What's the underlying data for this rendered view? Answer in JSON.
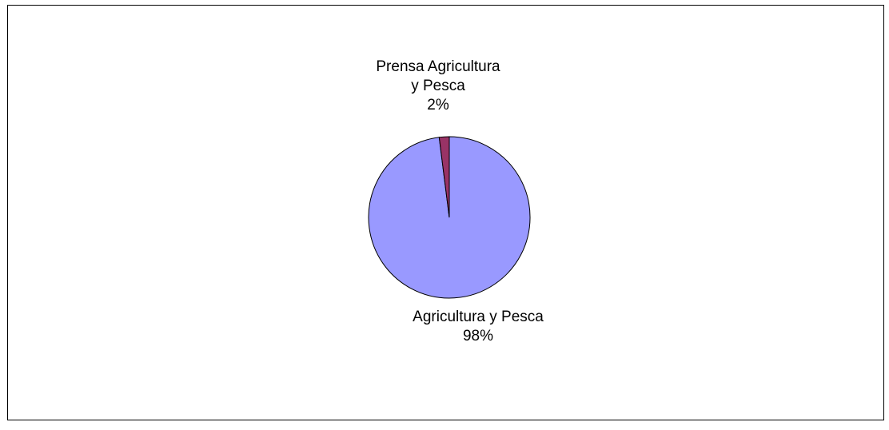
{
  "chart_data": {
    "type": "pie",
    "title": "",
    "slices": [
      {
        "label": "Agricultura y Pesca",
        "value": 98,
        "display": "98%",
        "color": "#9999ff"
      },
      {
        "label_lines": [
          "Prensa Agricultura",
          "y Pesca"
        ],
        "label": "Prensa Agricultura y Pesca",
        "value": 2,
        "display": "2%",
        "color": "#993366"
      }
    ],
    "legend": "none",
    "data_labels": "category name and percentage"
  }
}
